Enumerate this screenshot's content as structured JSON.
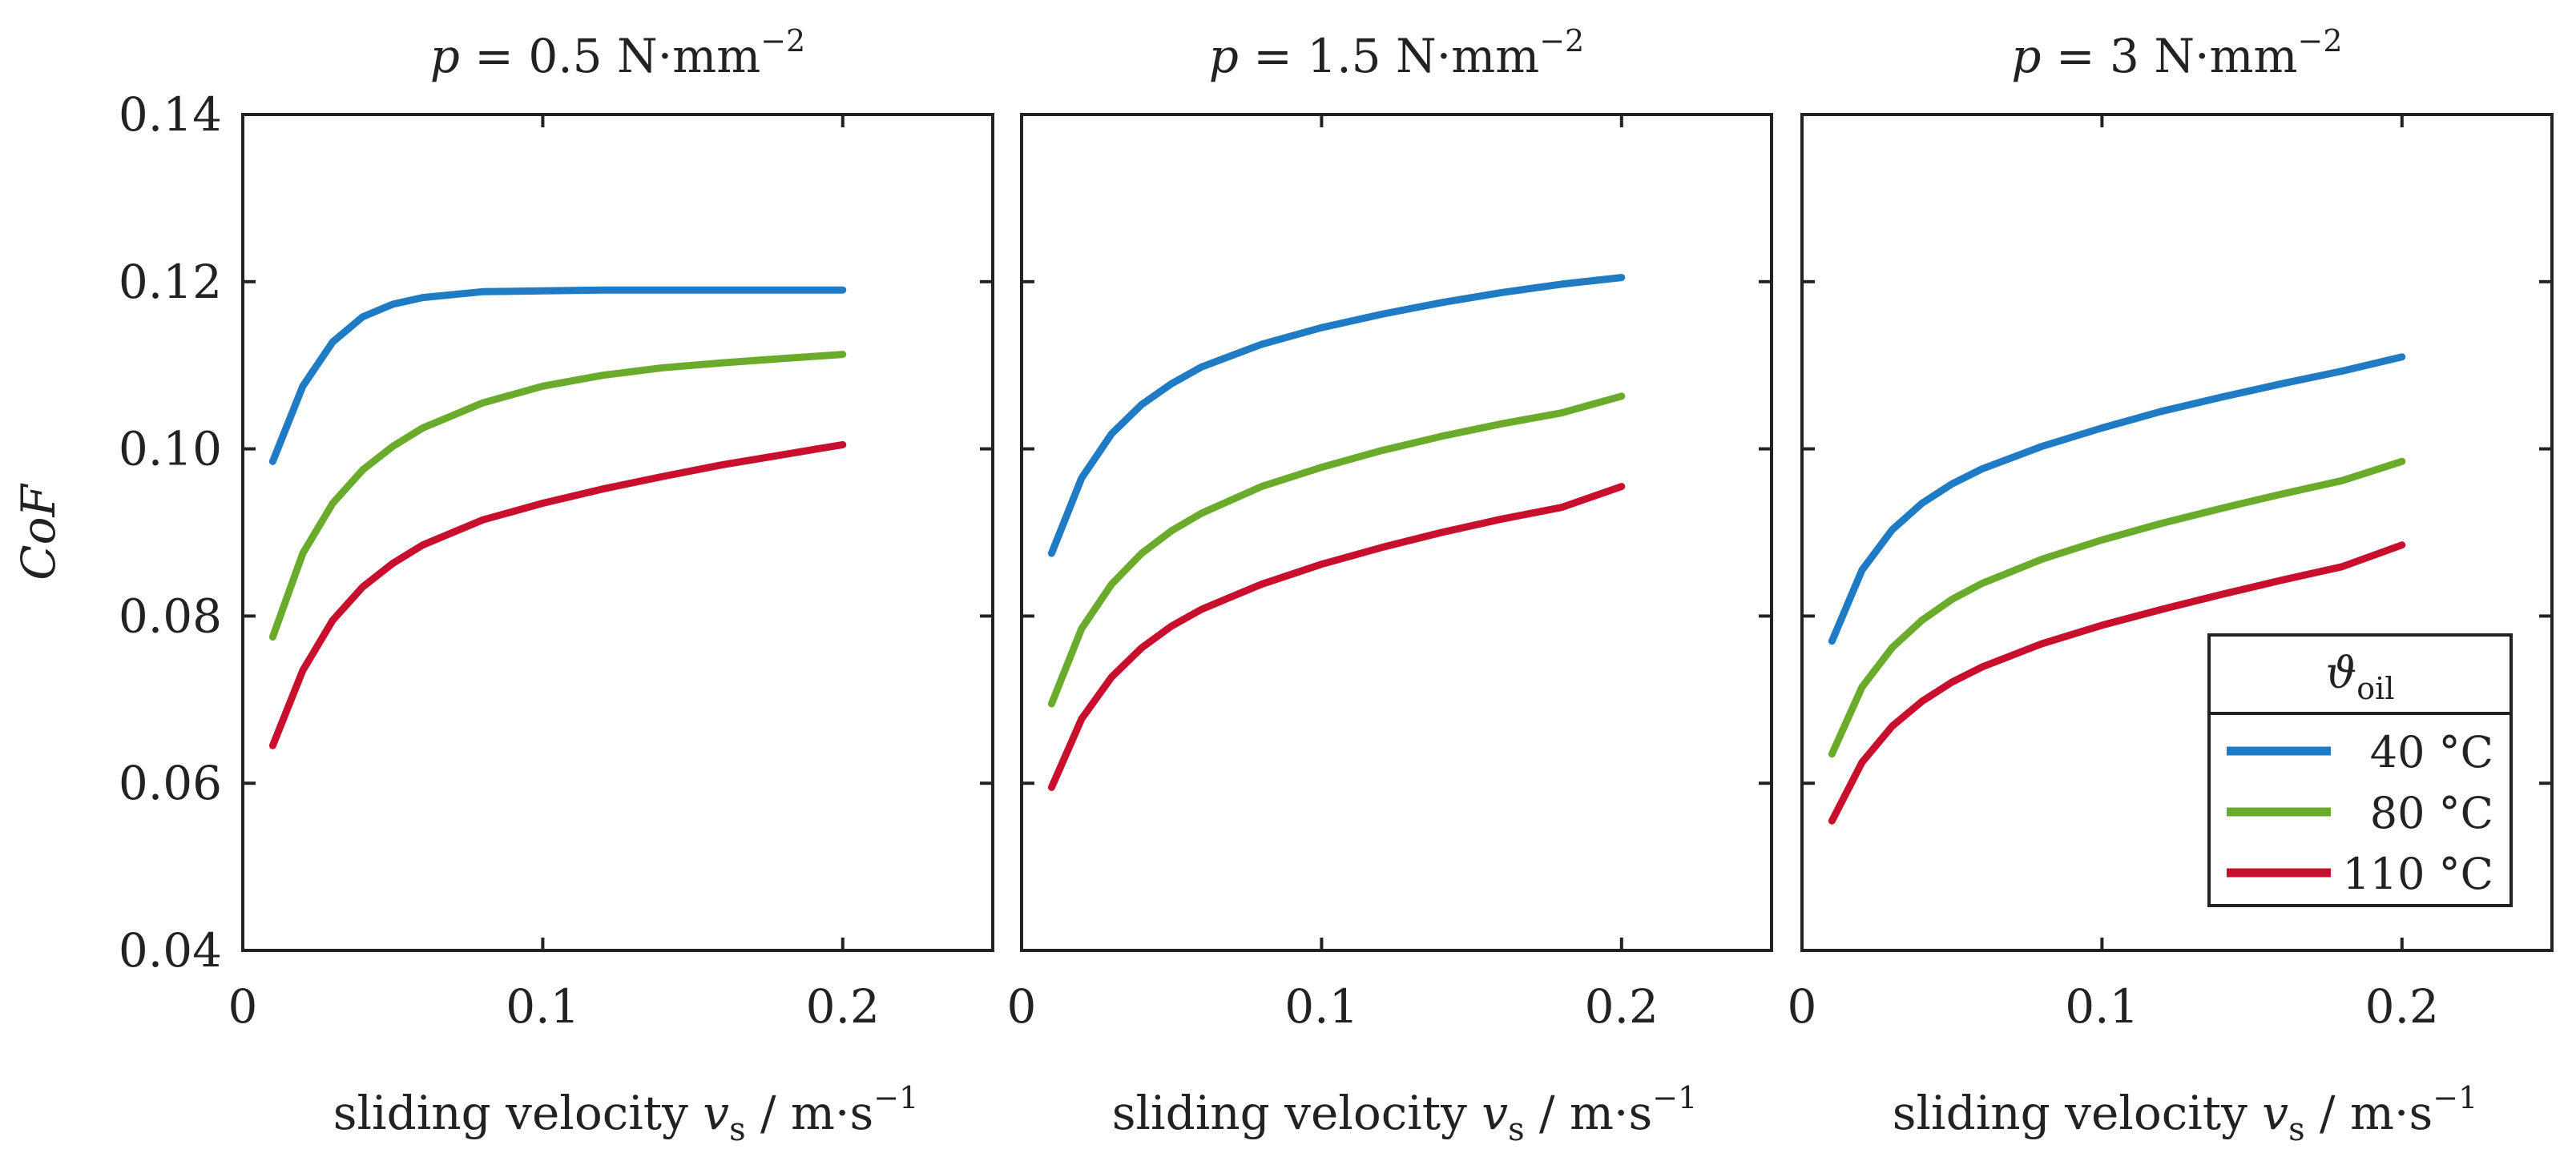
{
  "figure": {
    "ylabel": "CoF",
    "x_ticks": [
      "0",
      "0.1",
      "0.2"
    ],
    "y_ticks": [
      "0.04",
      "0.06",
      "0.08",
      "0.10",
      "0.12",
      "0.14"
    ],
    "legend": {
      "title": "ϑ",
      "title_sub": "oil",
      "entries": [
        {
          "label": "40 °C",
          "color": "#1f7bc4"
        },
        {
          "label": "80 °C",
          "color": "#6aab2b"
        },
        {
          "label": "110 °C",
          "color": "#c8102e"
        }
      ]
    }
  },
  "chart_data": [
    {
      "type": "line",
      "title": "p = 0.5 N·mm⁻²",
      "title_parts": {
        "var": "p",
        "rest": " = 0.5 N·mm",
        "sup": "−2"
      },
      "xlabel": "sliding velocity vs / m·s⁻¹",
      "xlabel_parts": {
        "pre": "sliding velocity ",
        "var": "v",
        "sub": "s",
        "post": " / m·s",
        "sup": "−1"
      },
      "ylabel": "CoF",
      "xlim": [
        0,
        0.25
      ],
      "ylim": [
        0.04,
        0.14
      ],
      "x": [
        0.01,
        0.02,
        0.03,
        0.04,
        0.05,
        0.06,
        0.08,
        0.1,
        0.12,
        0.14,
        0.16,
        0.18,
        0.2
      ],
      "series": [
        {
          "name": "40 °C",
          "values": [
            0.0985,
            0.1075,
            0.1128,
            0.1158,
            0.1173,
            0.1181,
            0.1188,
            0.1189,
            0.119,
            0.119,
            0.119,
            0.119,
            0.119
          ]
        },
        {
          "name": "80 °C",
          "values": [
            0.0775,
            0.0875,
            0.0935,
            0.0975,
            0.1003,
            0.1025,
            0.1055,
            0.1075,
            0.1088,
            0.1097,
            0.1103,
            0.1108,
            0.1113
          ]
        },
        {
          "name": "110 °C",
          "values": [
            0.0645,
            0.0735,
            0.0795,
            0.0835,
            0.0863,
            0.0885,
            0.0915,
            0.0935,
            0.0952,
            0.0967,
            0.0981,
            0.0993,
            0.1005
          ]
        }
      ]
    },
    {
      "type": "line",
      "title": "p = 1.5 N·mm⁻²",
      "title_parts": {
        "var": "p",
        "rest": " = 1.5 N·mm",
        "sup": "−2"
      },
      "xlabel": "sliding velocity vs / m·s⁻¹",
      "xlabel_parts": {
        "pre": "sliding velocity ",
        "var": "v",
        "sub": "s",
        "post": " / m·s",
        "sup": "−1"
      },
      "ylabel": "CoF",
      "xlim": [
        0,
        0.25
      ],
      "ylim": [
        0.04,
        0.14
      ],
      "x": [
        0.01,
        0.02,
        0.03,
        0.04,
        0.05,
        0.06,
        0.08,
        0.1,
        0.12,
        0.14,
        0.16,
        0.18,
        0.2
      ],
      "series": [
        {
          "name": "40 °C",
          "values": [
            0.0875,
            0.0965,
            0.1018,
            0.1053,
            0.1078,
            0.1098,
            0.1125,
            0.1145,
            0.1161,
            0.1175,
            0.1187,
            0.1197,
            0.1205
          ]
        },
        {
          "name": "80 °C",
          "values": [
            0.0695,
            0.0785,
            0.0838,
            0.0875,
            0.0902,
            0.0923,
            0.0955,
            0.0978,
            0.0998,
            0.1015,
            0.103,
            0.1043,
            0.1063
          ]
        },
        {
          "name": "110 °C",
          "values": [
            0.0595,
            0.0677,
            0.0727,
            0.0762,
            0.0788,
            0.0808,
            0.0838,
            0.0862,
            0.0882,
            0.09,
            0.0916,
            0.093,
            0.0955
          ]
        }
      ]
    },
    {
      "type": "line",
      "title": "p = 3 N·mm⁻²",
      "title_parts": {
        "var": "p",
        "rest": " = 3 N·mm",
        "sup": "−2"
      },
      "xlabel": "sliding velocity vs / m·s⁻¹",
      "xlabel_parts": {
        "pre": "sliding velocity ",
        "var": "v",
        "sub": "s",
        "post": " / m·s",
        "sup": "−1"
      },
      "ylabel": "CoF",
      "xlim": [
        0,
        0.25
      ],
      "ylim": [
        0.04,
        0.14
      ],
      "x": [
        0.01,
        0.02,
        0.03,
        0.04,
        0.05,
        0.06,
        0.08,
        0.1,
        0.12,
        0.14,
        0.16,
        0.18,
        0.2
      ],
      "series": [
        {
          "name": "40 °C",
          "values": [
            0.077,
            0.0855,
            0.0903,
            0.0935,
            0.0958,
            0.0976,
            0.1003,
            0.1025,
            0.1045,
            0.1062,
            0.1078,
            0.1093,
            0.111
          ]
        },
        {
          "name": "80 °C",
          "values": [
            0.0635,
            0.0715,
            0.0762,
            0.0795,
            0.082,
            0.0839,
            0.0868,
            0.0891,
            0.0911,
            0.0929,
            0.0946,
            0.0962,
            0.0985
          ]
        },
        {
          "name": "110 °C",
          "values": [
            0.0555,
            0.0625,
            0.0668,
            0.0698,
            0.0721,
            0.0739,
            0.0767,
            0.0789,
            0.0808,
            0.0826,
            0.0843,
            0.0859,
            0.0885
          ]
        }
      ]
    }
  ]
}
